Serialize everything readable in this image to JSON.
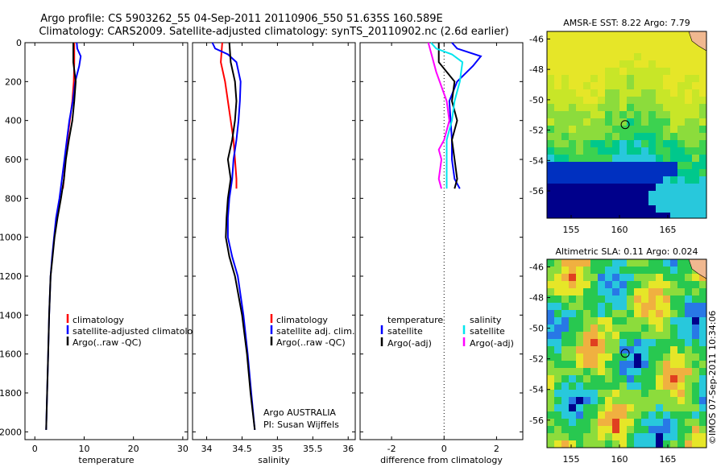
{
  "header": {
    "title_line1": "Argo profile: CS 5903262_55 04-Sep-2011 20110906_550 51.635S 160.589E",
    "title_line2": "Climatology: CARS2009. Satellite-adjusted climatology: synTS_20110902.nc (2.6d earlier)"
  },
  "depth_axis": {
    "ticks": [
      0,
      200,
      400,
      600,
      800,
      1000,
      1200,
      1400,
      1600,
      1800,
      2000
    ],
    "ylim": [
      0,
      2040
    ]
  },
  "colors": {
    "red": "#ff0000",
    "blue": "#0000ff",
    "black": "#000000",
    "cyan": "#00e5ee",
    "magenta": "#ff00ff"
  },
  "panel_note": {
    "line1": "Argo AUSTRALIA",
    "line2": "PI: Susan Wijffels"
  },
  "side_text": "©IMOS 07-Sep-2011 10:34:06",
  "maps": [
    {
      "title": "AMSR-E SST: 8.22  Argo: 7.79",
      "x_ticks": [
        "155",
        "160",
        "165"
      ],
      "y_ticks": [
        "-46",
        "-48",
        "-50",
        "-52",
        "-54",
        "-56"
      ],
      "marker_lon": 160.589,
      "marker_lat": -51.635
    },
    {
      "title": "Altimetric SLA: 0.11  Argo: 0.024",
      "x_ticks": [
        "155",
        "160",
        "165"
      ],
      "y_ticks": [
        "-46",
        "-48",
        "-50",
        "-52",
        "-54",
        "-56"
      ],
      "marker_lon": 160.589,
      "marker_lat": -51.635
    }
  ],
  "chart_data": [
    {
      "type": "line",
      "xlabel": "temperature",
      "xlim": [
        -2,
        31
      ],
      "x_ticks": [
        0,
        10,
        20,
        30
      ],
      "legend": [
        "climatology",
        "satellite-adjusted climatology",
        "Argo(..raw -QC)"
      ],
      "series": [
        {
          "name": "climatology",
          "color": "red",
          "points": [
            [
              8.0,
              0
            ],
            [
              8.0,
              100
            ],
            [
              7.9,
              200
            ],
            [
              7.6,
              300
            ],
            [
              7.1,
              400
            ],
            [
              6.6,
              500
            ],
            [
              6.2,
              600
            ],
            [
              5.9,
              700
            ],
            [
              5.7,
              750
            ]
          ]
        },
        {
          "name": "satellite-adjusted climatology",
          "color": "blue",
          "points": [
            [
              8.5,
              0
            ],
            [
              8.6,
              30
            ],
            [
              9.3,
              70
            ],
            [
              9.0,
              120
            ],
            [
              8.2,
              200
            ],
            [
              7.7,
              300
            ],
            [
              7.0,
              400
            ],
            [
              6.5,
              500
            ],
            [
              6.0,
              600
            ],
            [
              5.5,
              700
            ],
            [
              5.0,
              800
            ],
            [
              4.3,
              900
            ],
            [
              3.9,
              1000
            ],
            [
              3.5,
              1100
            ],
            [
              3.2,
              1200
            ],
            [
              2.9,
              1400
            ],
            [
              2.7,
              1600
            ],
            [
              2.5,
              1800
            ],
            [
              2.3,
              1990
            ]
          ]
        },
        {
          "name": "Argo(..raw -QC)",
          "color": "black",
          "points": [
            [
              7.8,
              0
            ],
            [
              7.8,
              100
            ],
            [
              8.3,
              200
            ],
            [
              8.0,
              300
            ],
            [
              7.6,
              400
            ],
            [
              6.9,
              500
            ],
            [
              6.3,
              600
            ],
            [
              5.9,
              700
            ],
            [
              5.3,
              800
            ],
            [
              4.6,
              900
            ],
            [
              4.0,
              1000
            ],
            [
              3.6,
              1100
            ],
            [
              3.2,
              1200
            ],
            [
              2.9,
              1400
            ],
            [
              2.7,
              1600
            ],
            [
              2.5,
              1800
            ],
            [
              2.3,
              1990
            ]
          ]
        }
      ]
    },
    {
      "type": "line",
      "xlabel": "salinity",
      "xlim": [
        33.8,
        36.1
      ],
      "x_ticks": [
        34,
        34.5,
        35,
        35.5,
        36
      ],
      "legend": [
        "climatology",
        "satellite adj. clim.",
        "Argo(..raw -QC)"
      ],
      "series": [
        {
          "name": "climatology",
          "color": "red",
          "points": [
            [
              34.22,
              0
            ],
            [
              34.2,
              100
            ],
            [
              34.26,
              200
            ],
            [
              34.3,
              300
            ],
            [
              34.34,
              400
            ],
            [
              34.38,
              500
            ],
            [
              34.4,
              600
            ],
            [
              34.42,
              700
            ],
            [
              34.42,
              750
            ]
          ]
        },
        {
          "name": "satellite adj. clim.",
          "color": "blue",
          "points": [
            [
              34.08,
              0
            ],
            [
              34.12,
              30
            ],
            [
              34.3,
              60
            ],
            [
              34.42,
              100
            ],
            [
              34.48,
              200
            ],
            [
              34.47,
              300
            ],
            [
              34.45,
              400
            ],
            [
              34.42,
              500
            ],
            [
              34.38,
              600
            ],
            [
              34.36,
              700
            ],
            [
              34.32,
              800
            ],
            [
              34.3,
              900
            ],
            [
              34.3,
              1000
            ],
            [
              34.36,
              1100
            ],
            [
              34.44,
              1200
            ],
            [
              34.52,
              1400
            ],
            [
              34.58,
              1600
            ],
            [
              34.63,
              1800
            ],
            [
              34.68,
              1990
            ]
          ]
        },
        {
          "name": "Argo(..raw -QC)",
          "color": "black",
          "points": [
            [
              34.32,
              0
            ],
            [
              34.34,
              100
            ],
            [
              34.4,
              200
            ],
            [
              34.42,
              300
            ],
            [
              34.4,
              400
            ],
            [
              34.36,
              500
            ],
            [
              34.3,
              600
            ],
            [
              34.34,
              700
            ],
            [
              34.3,
              800
            ],
            [
              34.28,
              900
            ],
            [
              34.27,
              1000
            ],
            [
              34.32,
              1100
            ],
            [
              34.4,
              1200
            ],
            [
              34.5,
              1400
            ],
            [
              34.57,
              1600
            ],
            [
              34.62,
              1800
            ],
            [
              34.68,
              1990
            ]
          ]
        }
      ]
    },
    {
      "type": "line",
      "xlabel": "difference from climatology",
      "xlim": [
        -3.2,
        3.0
      ],
      "x_ticks": [
        -2,
        0,
        2
      ],
      "zero_line": true,
      "legend_titles": [
        "temperature",
        "salinity"
      ],
      "legend": [
        "satellite",
        "Argo(-adj)",
        "satellite",
        "Argo(-adj)"
      ],
      "series": [
        {
          "name": "temperature satellite",
          "color": "blue",
          "points": [
            [
              0.3,
              0
            ],
            [
              0.5,
              30
            ],
            [
              1.4,
              70
            ],
            [
              1.1,
              120
            ],
            [
              0.5,
              200
            ],
            [
              0.2,
              300
            ],
            [
              0.25,
              400
            ],
            [
              0.3,
              500
            ],
            [
              0.3,
              600
            ],
            [
              0.4,
              700
            ],
            [
              0.6,
              750
            ]
          ]
        },
        {
          "name": "temperature Argo(-adj)",
          "color": "black",
          "points": [
            [
              -0.2,
              0
            ],
            [
              -0.2,
              100
            ],
            [
              0.4,
              200
            ],
            [
              0.3,
              300
            ],
            [
              0.5,
              400
            ],
            [
              0.3,
              500
            ],
            [
              0.4,
              600
            ],
            [
              0.5,
              700
            ],
            [
              0.4,
              750
            ]
          ]
        },
        {
          "name": "salinity satellite",
          "color": "cyan",
          "points": [
            [
              -0.5,
              0
            ],
            [
              -0.3,
              30
            ],
            [
              0.3,
              60
            ],
            [
              0.7,
              100
            ],
            [
              0.6,
              200
            ],
            [
              0.4,
              300
            ],
            [
              0.3,
              400
            ],
            [
              0.1,
              500
            ],
            [
              0.1,
              600
            ],
            [
              0.1,
              700
            ],
            [
              0.1,
              750
            ]
          ]
        },
        {
          "name": "salinity Argo(-adj)",
          "color": "magenta",
          "points": [
            [
              -0.6,
              0
            ],
            [
              -0.5,
              50
            ],
            [
              -0.3,
              150
            ],
            [
              0.1,
              300
            ],
            [
              0.2,
              400
            ],
            [
              0.0,
              500
            ],
            [
              -0.2,
              550
            ],
            [
              -0.1,
              600
            ],
            [
              -0.2,
              700
            ],
            [
              -0.1,
              750
            ]
          ]
        }
      ]
    }
  ]
}
